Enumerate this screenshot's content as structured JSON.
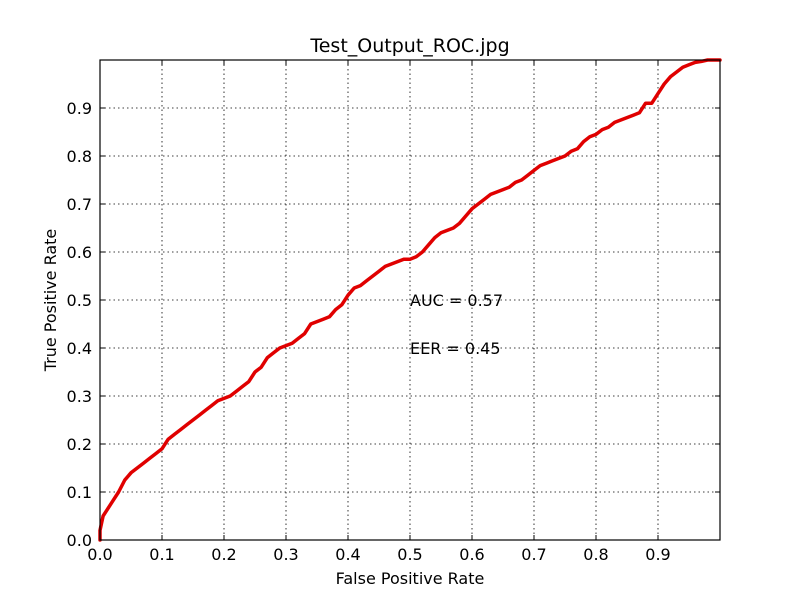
{
  "chart_data": {
    "type": "line",
    "title": "Test_Output_ROC.jpg",
    "xlabel": "False Positive Rate",
    "ylabel": "True Positive Rate",
    "xlim": [
      0,
      1
    ],
    "ylim": [
      0,
      1
    ],
    "grid": true,
    "x_ticks": [
      0.0,
      0.1,
      0.2,
      0.3,
      0.4,
      0.5,
      0.6,
      0.7,
      0.8,
      0.9
    ],
    "y_ticks": [
      0.0,
      0.1,
      0.2,
      0.3,
      0.4,
      0.5,
      0.6,
      0.7,
      0.8,
      0.9
    ],
    "x_tick_labels": [
      "0.0",
      "0.1",
      "0.2",
      "0.3",
      "0.4",
      "0.5",
      "0.6",
      "0.7",
      "0.8",
      "0.9"
    ],
    "y_tick_labels": [
      "0.0",
      "0.1",
      "0.2",
      "0.3",
      "0.4",
      "0.5",
      "0.6",
      "0.7",
      "0.8",
      "0.9"
    ],
    "annotations": [
      {
        "text": "AUC = 0.57",
        "x": 0.5,
        "y": 0.5
      },
      {
        "text": "EER = 0.45",
        "x": 0.5,
        "y": 0.4
      }
    ],
    "series": [
      {
        "color": "#e00000",
        "x": [
          0.0,
          0.0,
          0.005,
          0.01,
          0.02,
          0.03,
          0.04,
          0.05,
          0.06,
          0.07,
          0.08,
          0.09,
          0.1,
          0.11,
          0.12,
          0.13,
          0.14,
          0.15,
          0.16,
          0.17,
          0.18,
          0.19,
          0.2,
          0.21,
          0.22,
          0.23,
          0.24,
          0.25,
          0.26,
          0.27,
          0.28,
          0.29,
          0.3,
          0.31,
          0.32,
          0.33,
          0.34,
          0.35,
          0.36,
          0.37,
          0.38,
          0.39,
          0.4,
          0.41,
          0.42,
          0.43,
          0.44,
          0.45,
          0.46,
          0.47,
          0.48,
          0.49,
          0.5,
          0.51,
          0.52,
          0.53,
          0.54,
          0.55,
          0.56,
          0.57,
          0.58,
          0.59,
          0.6,
          0.61,
          0.62,
          0.63,
          0.64,
          0.65,
          0.66,
          0.67,
          0.68,
          0.69,
          0.7,
          0.71,
          0.72,
          0.73,
          0.74,
          0.75,
          0.76,
          0.77,
          0.78,
          0.79,
          0.8,
          0.81,
          0.82,
          0.83,
          0.84,
          0.85,
          0.86,
          0.87,
          0.88,
          0.89,
          0.9,
          0.91,
          0.92,
          0.93,
          0.94,
          0.95,
          0.96,
          0.97,
          0.98,
          0.99,
          1.0
        ],
        "y": [
          0.0,
          0.02,
          0.05,
          0.06,
          0.08,
          0.1,
          0.125,
          0.14,
          0.15,
          0.16,
          0.17,
          0.18,
          0.19,
          0.21,
          0.22,
          0.23,
          0.24,
          0.25,
          0.26,
          0.27,
          0.28,
          0.29,
          0.295,
          0.3,
          0.31,
          0.32,
          0.33,
          0.35,
          0.36,
          0.38,
          0.39,
          0.4,
          0.405,
          0.41,
          0.42,
          0.43,
          0.45,
          0.455,
          0.46,
          0.465,
          0.48,
          0.49,
          0.51,
          0.525,
          0.53,
          0.54,
          0.55,
          0.56,
          0.57,
          0.575,
          0.58,
          0.585,
          0.585,
          0.59,
          0.6,
          0.615,
          0.63,
          0.64,
          0.645,
          0.65,
          0.66,
          0.675,
          0.69,
          0.7,
          0.71,
          0.72,
          0.725,
          0.73,
          0.735,
          0.745,
          0.75,
          0.76,
          0.77,
          0.78,
          0.785,
          0.79,
          0.795,
          0.8,
          0.81,
          0.815,
          0.83,
          0.84,
          0.845,
          0.855,
          0.86,
          0.87,
          0.875,
          0.88,
          0.885,
          0.89,
          0.91,
          0.91,
          0.93,
          0.95,
          0.965,
          0.975,
          0.985,
          0.99,
          0.995,
          0.997,
          1.0,
          1.0,
          1.0
        ]
      }
    ]
  }
}
